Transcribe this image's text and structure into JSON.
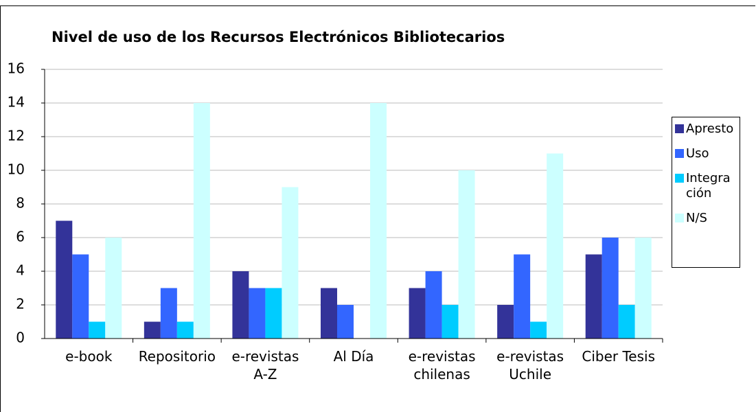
{
  "chart_data": {
    "type": "bar",
    "title": "Nivel de uso de los Recursos Electrónicos Bibliotecarios",
    "categories": [
      "e-book",
      "Repositorio",
      "e-revistas A-Z",
      "Al Día",
      "e-revistas chilenas",
      "e-revistas Uchile",
      "Ciber Tesis"
    ],
    "series": [
      {
        "name": "Apresto",
        "color": "#333399",
        "values": [
          7,
          1,
          4,
          3,
          3,
          2,
          5
        ]
      },
      {
        "name": "Uso",
        "color": "#3366ff",
        "values": [
          5,
          3,
          3,
          2,
          4,
          5,
          6
        ]
      },
      {
        "name": "Integración",
        "color": "#00ccff",
        "values": [
          1,
          1,
          3,
          0,
          2,
          1,
          2
        ]
      },
      {
        "name": "N/S",
        "color": "#ccffff",
        "values": [
          6,
          14,
          9,
          14,
          10,
          11,
          6
        ]
      }
    ],
    "ylim": [
      0,
      16
    ],
    "yticks": [
      0,
      2,
      4,
      6,
      8,
      10,
      12,
      14,
      16
    ],
    "grid": true,
    "legend": "right"
  }
}
